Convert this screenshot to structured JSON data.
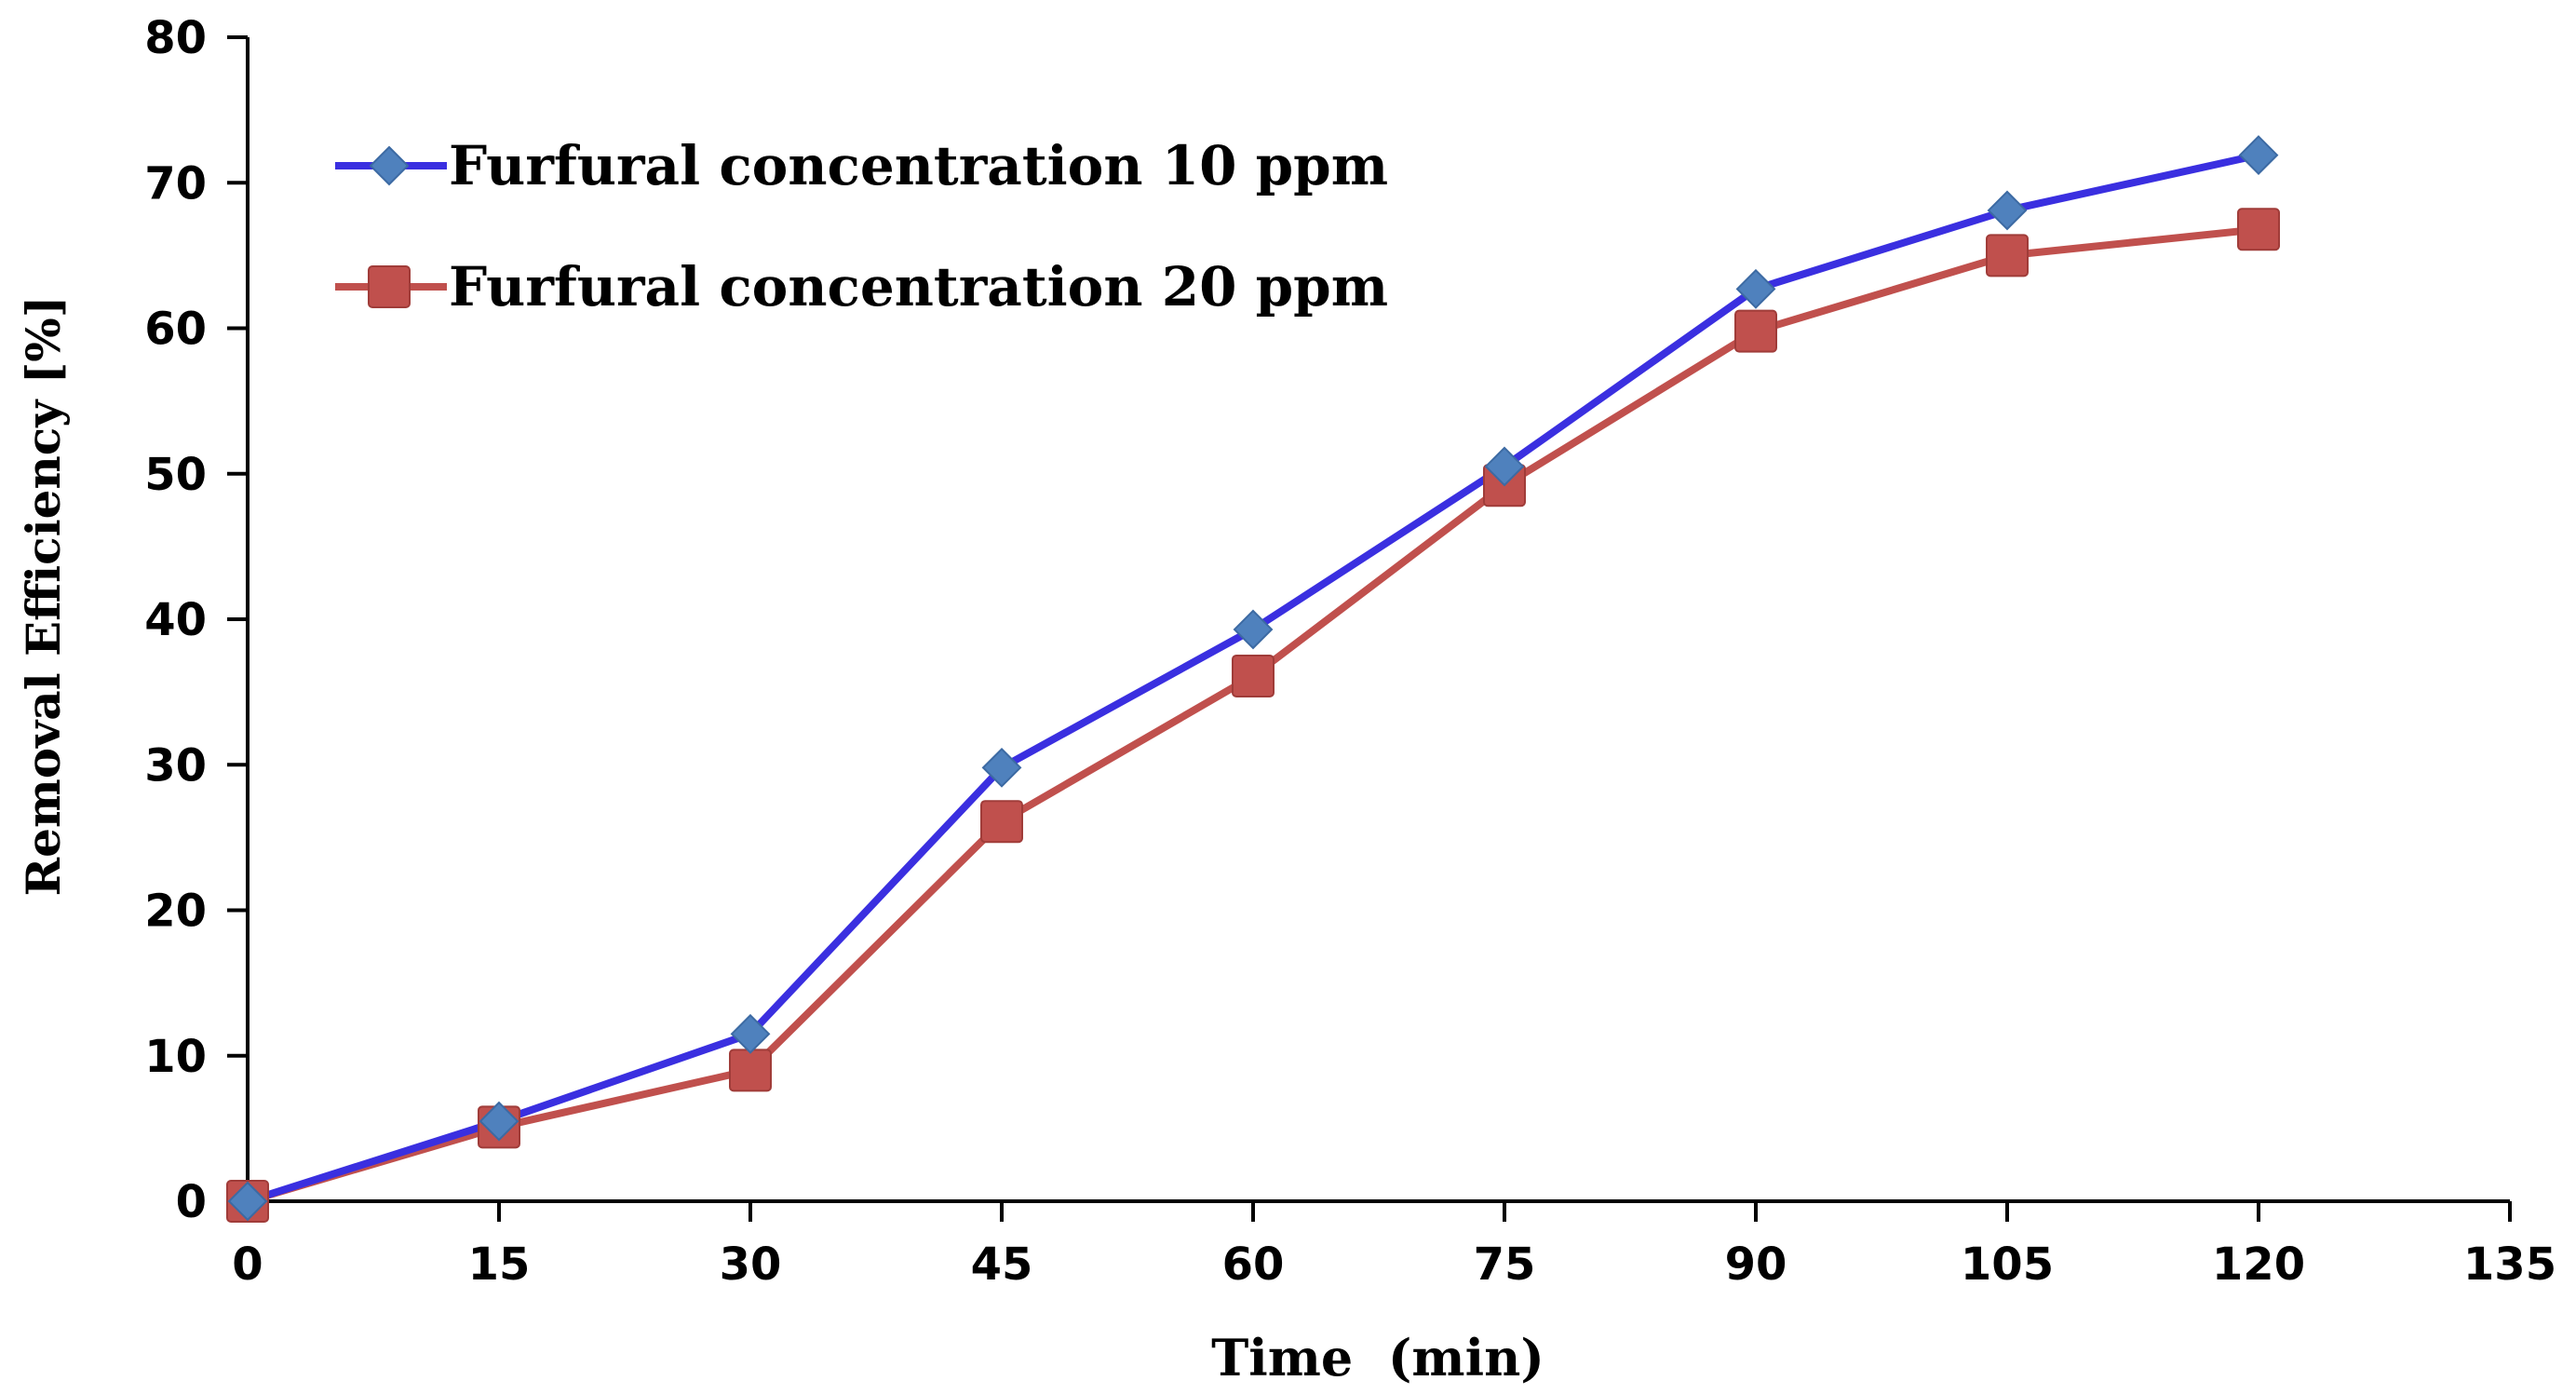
{
  "chart_data": {
    "type": "line",
    "title": "",
    "xlabel": "Time  (min)",
    "ylabel": "Removal Efficiency [%]",
    "xlim": [
      0,
      135
    ],
    "ylim": [
      0,
      80
    ],
    "xticks": [
      0,
      15,
      30,
      45,
      60,
      75,
      90,
      105,
      120,
      135
    ],
    "yticks": [
      0,
      10,
      20,
      30,
      40,
      50,
      60,
      70,
      80
    ],
    "grid": false,
    "legend_position": "top-left",
    "x": [
      0,
      15,
      30,
      45,
      60,
      75,
      90,
      105,
      120
    ],
    "series": [
      {
        "name": "Furfural concentration 10 ppm",
        "color": "#3a2fe0",
        "marker": "diamond",
        "marker_color": "#4f81bd",
        "values": [
          0,
          5.5,
          11.5,
          29.8,
          39.3,
          50.5,
          62.7,
          68.1,
          71.9
        ]
      },
      {
        "name": "Furfural concentration 20 ppm",
        "color": "#c0504d",
        "marker": "square",
        "marker_color": "#c0504d",
        "values": [
          0,
          5.1,
          9.0,
          26.1,
          36.1,
          49.2,
          59.8,
          65.0,
          66.8
        ]
      }
    ]
  }
}
